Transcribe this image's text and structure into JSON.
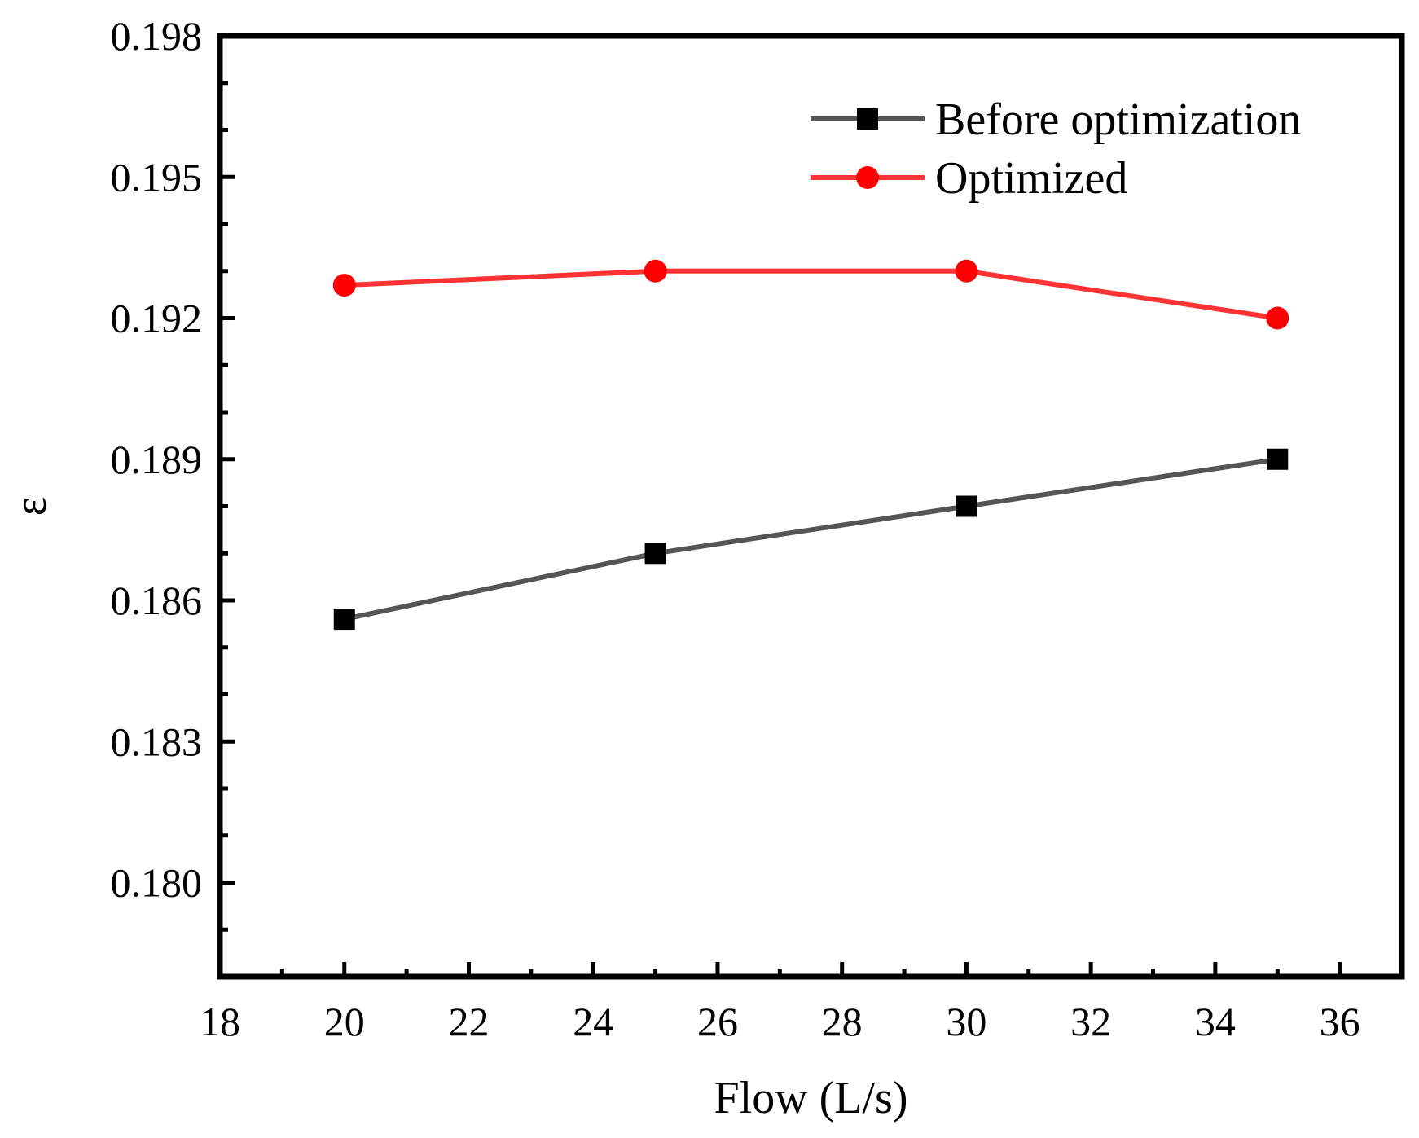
{
  "chart_data": {
    "type": "line",
    "title": "",
    "xlabel": "Flow (L/s)",
    "ylabel": "ε",
    "xlim": [
      18,
      37
    ],
    "ylim": [
      0.178,
      0.198
    ],
    "x_ticks": [
      18,
      20,
      22,
      24,
      26,
      28,
      30,
      32,
      34,
      36
    ],
    "x_tick_labels": [
      "18",
      "20",
      "22",
      "24",
      "26",
      "28",
      "30",
      "32",
      "34",
      "36"
    ],
    "y_ticks": [
      0.18,
      0.183,
      0.186,
      0.189,
      0.192,
      0.195,
      0.198
    ],
    "y_tick_labels": [
      "0.180",
      "0.183",
      "0.186",
      "0.189",
      "0.192",
      "0.195",
      "0.198"
    ],
    "grid": false,
    "legend_position": "top-right",
    "series": [
      {
        "name": "Before optimization",
        "color": "#555555",
        "marker": "square",
        "x": [
          20,
          25,
          30,
          35
        ],
        "y": [
          0.1856,
          0.187,
          0.188,
          0.189
        ]
      },
      {
        "name": "Optimized",
        "color": "#ff3333",
        "marker": "circle",
        "x": [
          20,
          25,
          30,
          35
        ],
        "y": [
          0.1927,
          0.193,
          0.193,
          0.192
        ]
      }
    ]
  }
}
